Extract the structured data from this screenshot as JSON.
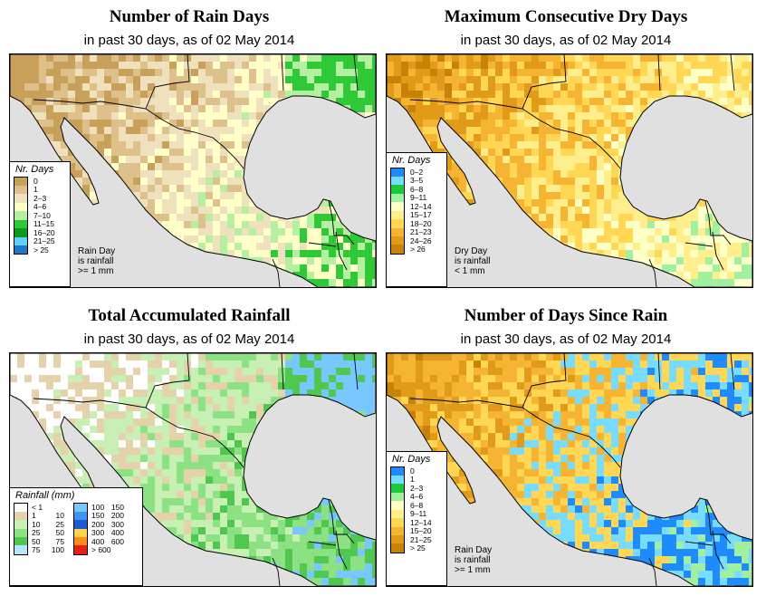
{
  "colors": {
    "ocean": "#e0e0e0",
    "border": "#000000"
  },
  "panels": [
    {
      "title": "Number of Rain Days",
      "subtitle": "in past 30 days, as of  02 May 2014",
      "legend_title": "Nr. Days",
      "legend": [
        {
          "label": "0",
          "color": "#c8a05a"
        },
        {
          "label": "1",
          "color": "#ddc08a"
        },
        {
          "label": "2–3",
          "color": "#efe1bd"
        },
        {
          "label": "4–6",
          "color": "#ffffc8"
        },
        {
          "label": "7–10",
          "color": "#b4f0a0"
        },
        {
          "label": "11–15",
          "color": "#2fc836"
        },
        {
          "label": "16–20",
          "color": "#0a9a1e"
        },
        {
          "label": "21–25",
          "color": "#66ccff"
        },
        {
          "label": "> 25",
          "color": "#1e78c8"
        }
      ],
      "note": "Rain Day\nis rainfall\n>= 1 mm"
    },
    {
      "title": "Maximum Consecutive Dry Days",
      "subtitle": "in past 30 days, as of  02 May 2014",
      "legend_title": "Nr. Days",
      "legend": [
        {
          "label": "0–2",
          "color": "#1e8cff"
        },
        {
          "label": "3–5",
          "color": "#78dcff"
        },
        {
          "label": "6–8",
          "color": "#1ec83c"
        },
        {
          "label": "9–11",
          "color": "#a0f0a0"
        },
        {
          "label": "12–14",
          "color": "#ffffc8"
        },
        {
          "label": "15–17",
          "color": "#ffee8c"
        },
        {
          "label": "18–20",
          "color": "#ffd755"
        },
        {
          "label": "21–23",
          "color": "#f5b432"
        },
        {
          "label": "24–26",
          "color": "#e19b19"
        },
        {
          "label": "> 26",
          "color": "#c8820a"
        }
      ],
      "note": "Dry Day\nis rainfall\n< 1 mm"
    },
    {
      "title": "Total Accumulated Rainfall",
      "subtitle": "in past 30 days, as of  02 May 2014",
      "legend_title": "Rainfall (mm)",
      "legend_left": [
        {
          "lo": "< 1",
          "hi": "",
          "color": "#ffffff"
        },
        {
          "lo": "1",
          "hi": "10",
          "color": "#e6d2aa"
        },
        {
          "lo": "10",
          "hi": "25",
          "color": "#c8f0b4"
        },
        {
          "lo": "25",
          "hi": "50",
          "color": "#8ce282"
        },
        {
          "lo": "50",
          "hi": "75",
          "color": "#50c850"
        },
        {
          "lo": "75",
          "hi": "100",
          "color": "#b4e6ff"
        }
      ],
      "legend_right": [
        {
          "lo": "100",
          "hi": "150",
          "color": "#78c8ff"
        },
        {
          "lo": "150",
          "hi": "200",
          "color": "#3c96f0"
        },
        {
          "lo": "200",
          "hi": "300",
          "color": "#1e5ad2"
        },
        {
          "lo": "300",
          "hi": "400",
          "color": "#ffd250"
        },
        {
          "lo": "400",
          "hi": "600",
          "color": "#ff8c1e"
        },
        {
          "lo": "> 600",
          "hi": "",
          "color": "#e61e1e"
        }
      ]
    },
    {
      "title": "Number of Days Since Rain",
      "subtitle": "in past 30 days, as of  02 May 2014",
      "legend_title": "Nr. Days",
      "legend": [
        {
          "label": "0",
          "color": "#1e8cff"
        },
        {
          "label": "1",
          "color": "#78dcff"
        },
        {
          "label": "2–3",
          "color": "#1ec83c"
        },
        {
          "label": "4–6",
          "color": "#a0f0a0"
        },
        {
          "label": "6–8",
          "color": "#ffffc8"
        },
        {
          "label": "9–11",
          "color": "#ffee8c"
        },
        {
          "label": "12–14",
          "color": "#ffd755"
        },
        {
          "label": "15–20",
          "color": "#f5b432"
        },
        {
          "label": "21–25",
          "color": "#e19b19"
        },
        {
          "label": "> 25",
          "color": "#c8820a"
        }
      ],
      "note": "Rain Day\nis rainfall\n>= 1 mm"
    }
  ]
}
